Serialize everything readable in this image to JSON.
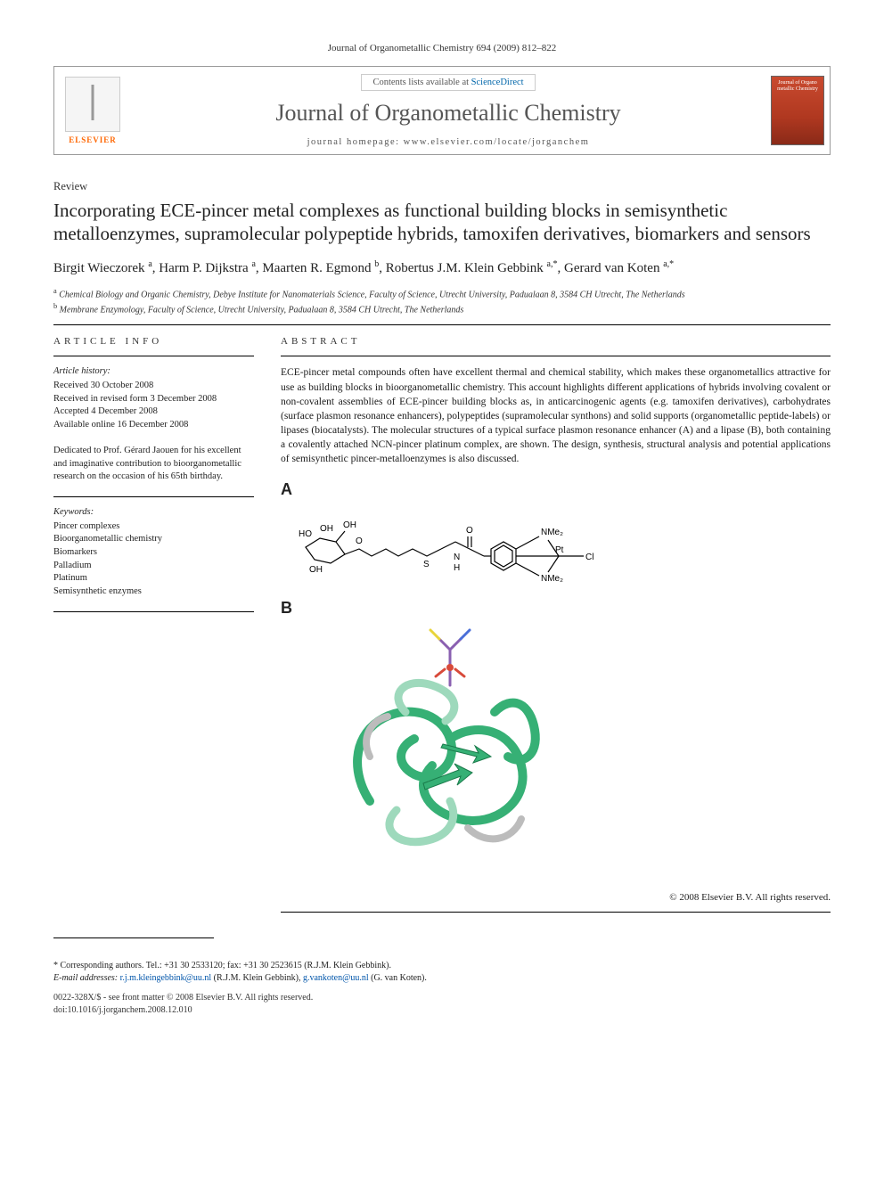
{
  "journal_ref": "Journal of Organometallic Chemistry 694 (2009) 812–822",
  "header": {
    "contents_prefix": "Contents lists available at ",
    "contents_link": "ScienceDirect",
    "journal_name": "Journal of Organometallic Chemistry",
    "homepage_prefix": "journal homepage: ",
    "homepage_url": "www.elsevier.com/locate/jorganchem",
    "elsevier_label": "ELSEVIER",
    "cover_text": "Journal of Organo metallic Chemistry"
  },
  "article_type": "Review",
  "title": "Incorporating ECE-pincer metal complexes as functional building blocks in semisynthetic metalloenzymes, supramolecular polypeptide hybrids, tamoxifen derivatives, biomarkers and sensors",
  "authors_html": "Birgit Wieczorek ",
  "authors": [
    {
      "name": "Birgit Wieczorek",
      "aff": "a"
    },
    {
      "name": "Harm P. Dijkstra",
      "aff": "a"
    },
    {
      "name": "Maarten R. Egmond",
      "aff": "b"
    },
    {
      "name": "Robertus J.M. Klein Gebbink",
      "aff": "a,*"
    },
    {
      "name": "Gerard van Koten",
      "aff": "a,*"
    }
  ],
  "affiliations": [
    {
      "sup": "a",
      "text": "Chemical Biology and Organic Chemistry, Debye Institute for Nanomaterials Science, Faculty of Science, Utrecht University, Padualaan 8, 3584 CH Utrecht, The Netherlands"
    },
    {
      "sup": "b",
      "text": "Membrane Enzymology, Faculty of Science, Utrecht University, Padualaan 8, 3584 CH Utrecht, The Netherlands"
    }
  ],
  "article_info": {
    "label": "ARTICLE INFO",
    "history_heading": "Article history:",
    "history": [
      "Received 30 October 2008",
      "Received in revised form 3 December 2008",
      "Accepted 4 December 2008",
      "Available online 16 December 2008"
    ],
    "dedication": "Dedicated to Prof. Gérard Jaouen for his excellent and imaginative contribution to bioorganometallic research on the occasion of his 65th birthday.",
    "keywords_heading": "Keywords:",
    "keywords": [
      "Pincer complexes",
      "Bioorganometallic chemistry",
      "Biomarkers",
      "Palladium",
      "Platinum",
      "Semisynthetic enzymes"
    ]
  },
  "abstract": {
    "label": "ABSTRACT",
    "text": "ECE-pincer metal compounds often have excellent thermal and chemical stability, which makes these organometallics attractive for use as building blocks in bioorganometallic chemistry. This account highlights different applications of hybrids involving covalent or non-covalent assemblies of ECE-pincer building blocks as, in anticarcinogenic agents (e.g. tamoxifen derivatives), carbohydrates (surface plasmon resonance enhancers), polypeptides (supramolecular synthons) and solid supports (organometallic peptide-labels) or lipases (biocatalysts). The molecular structures of a typical surface plasmon resonance enhancer (A) and a lipase (B), both containing a covalently attached NCN-pincer platinum complex, are shown. The design, synthesis, structural analysis and potential applications of semisynthetic pincer-metalloenzymes is also discussed.",
    "fig_labels": {
      "a": "A",
      "b": "B"
    },
    "chem_atoms": {
      "oh_groups": [
        "OH",
        "OH",
        "OH"
      ],
      "ho": "HO",
      "o_linkers": [
        "O",
        "O"
      ],
      "s": "S",
      "n": "N",
      "h": "H",
      "nme2_top": "NMe₂",
      "nme2_bot": "NMe₂",
      "pt": "Pt",
      "cl": "Cl"
    },
    "protein_colors": {
      "ribbon_main": "#36b075",
      "ribbon_light": "#9ed9bc",
      "ribbon_gray": "#bcbcbc",
      "ligand_sticks": "#8a5fb0",
      "accent_red": "#d84a3a",
      "accent_yellow": "#e8d43a",
      "accent_blue": "#4a6fd8"
    }
  },
  "copyright": "© 2008 Elsevier B.V. All rights reserved.",
  "footnotes": {
    "corr": "* Corresponding authors. Tel.: +31 30 2533120; fax: +31 30 2523615 (R.J.M. Klein Gebbink).",
    "email_prefix": "E-mail addresses: ",
    "email1": "r.j.m.kleingebbink@uu.nl",
    "email1_name": " (R.J.M. Klein Gebbink), ",
    "email2": "g.vankoten@uu.nl",
    "email2_name": " (G. van Koten)."
  },
  "issn": {
    "line1": "0022-328X/$ - see front matter © 2008 Elsevier B.V. All rights reserved.",
    "line2": "doi:10.1016/j.jorganchem.2008.12.010"
  },
  "colors": {
    "link": "#0055aa",
    "elsevier_orange": "#ff6600",
    "cover_bg": "#b03820",
    "text": "#1a1a1a"
  }
}
